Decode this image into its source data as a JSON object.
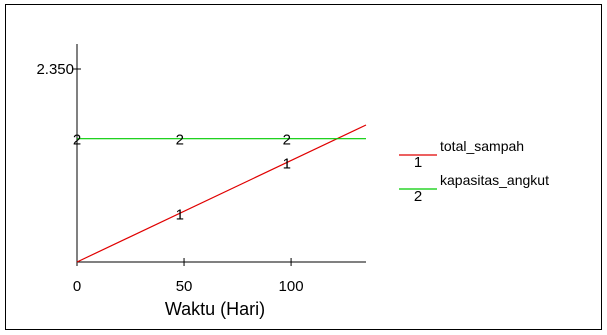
{
  "chart_data": {
    "type": "line",
    "xlabel": "Waktu (Hari)",
    "ylabel": "",
    "xlim": [
      0,
      135
    ],
    "x_ticks": [
      "0",
      "50",
      "100"
    ],
    "y_ticks": [
      "2.350"
    ],
    "grid": false,
    "legend": "right",
    "series": [
      {
        "name": "total_sampah",
        "marker": "1",
        "color": "#e00000",
        "x": [
          0,
          135
        ],
        "y": [
          0,
          1.0
        ]
      },
      {
        "name": "kapasitas_angkut",
        "marker": "2",
        "color": "#00cc00",
        "x": [
          0,
          135
        ],
        "y": [
          0.9,
          0.9
        ]
      }
    ],
    "marker_labels": [
      {
        "series": 0,
        "x": 48,
        "text": "1"
      },
      {
        "series": 0,
        "x": 98,
        "text": "1"
      },
      {
        "series": 1,
        "x": 0,
        "text": "2"
      },
      {
        "series": 1,
        "x": 48,
        "text": "2"
      },
      {
        "series": 1,
        "x": 98,
        "text": "2"
      }
    ]
  }
}
